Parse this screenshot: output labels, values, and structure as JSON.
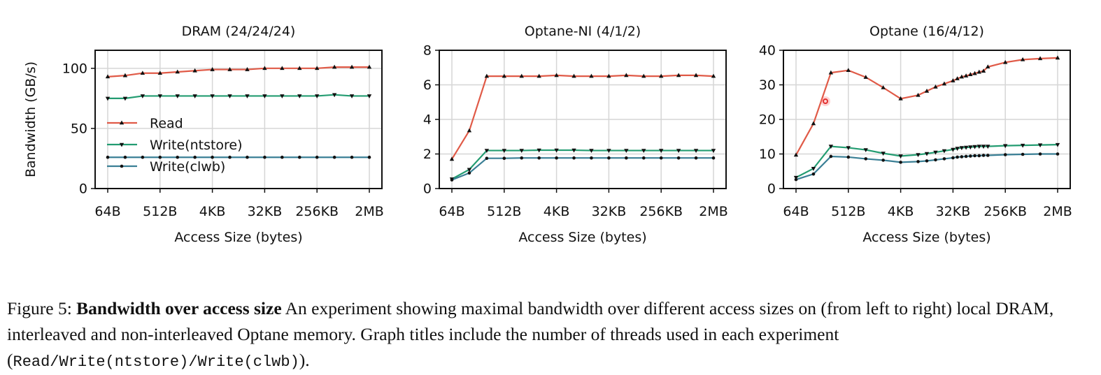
{
  "chart_data": [
    {
      "type": "line",
      "title": "DRAM (24/24/24)",
      "xlabel": "Access Size (bytes)",
      "ylabel": "Bandwidth (GB/s)",
      "ylim": [
        0,
        115
      ],
      "yticks": [
        0,
        50,
        100
      ],
      "xtick_labels": [
        "64B",
        "512B",
        "4KB",
        "32KB",
        "256KB",
        "2MB"
      ],
      "grid": true,
      "legend": "center-left",
      "series": [
        {
          "name": "Read",
          "color": "#e05a47",
          "marker": "triangle-up",
          "x": [
            0,
            1,
            2,
            3,
            4,
            5,
            6,
            7,
            8,
            9,
            10,
            11,
            12,
            13,
            14,
            15
          ],
          "y": [
            93,
            94,
            96,
            96,
            97,
            98,
            99,
            99,
            99,
            100,
            100,
            100,
            100,
            101,
            101,
            101
          ]
        },
        {
          "name": "Write(ntstore)",
          "color": "#239c71",
          "marker": "triangle-down",
          "x": [
            0,
            1,
            2,
            3,
            4,
            5,
            6,
            7,
            8,
            9,
            10,
            11,
            12,
            13,
            14,
            15
          ],
          "y": [
            75,
            75,
            77,
            77,
            77,
            77,
            77,
            77,
            77,
            77,
            77,
            77,
            77,
            78,
            77,
            77
          ]
        },
        {
          "name": "Write(clwb)",
          "color": "#3a7f95",
          "marker": "circle",
          "x": [
            0,
            1,
            2,
            3,
            4,
            5,
            6,
            7,
            8,
            9,
            10,
            11,
            12,
            13,
            14,
            15
          ],
          "y": [
            26,
            26,
            26,
            26,
            26,
            26,
            26,
            26,
            26,
            26,
            26,
            26,
            26,
            26,
            26,
            26
          ]
        }
      ]
    },
    {
      "type": "line",
      "title": "Optane-NI (4/1/2)",
      "xlabel": "Access Size (bytes)",
      "ylabel": "",
      "ylim": [
        0,
        8
      ],
      "yticks": [
        0,
        2,
        4,
        6,
        8
      ],
      "xtick_labels": [
        "64B",
        "512B",
        "4KB",
        "32KB",
        "256KB",
        "2MB"
      ],
      "grid": true,
      "series": [
        {
          "name": "Read",
          "color": "#e05a47",
          "marker": "triangle-up",
          "x": [
            0,
            1,
            2,
            3,
            4,
            5,
            6,
            7,
            8,
            9,
            10,
            11,
            12,
            13,
            14,
            15
          ],
          "y": [
            1.7,
            3.35,
            6.5,
            6.5,
            6.5,
            6.5,
            6.55,
            6.5,
            6.5,
            6.5,
            6.55,
            6.5,
            6.5,
            6.55,
            6.55,
            6.5
          ]
        },
        {
          "name": "Write(ntstore)",
          "color": "#239c71",
          "marker": "triangle-down",
          "x": [
            0,
            1,
            2,
            3,
            4,
            5,
            6,
            7,
            8,
            9,
            10,
            11,
            12,
            13,
            14,
            15
          ],
          "y": [
            0.55,
            1.1,
            2.2,
            2.2,
            2.2,
            2.22,
            2.22,
            2.22,
            2.2,
            2.2,
            2.2,
            2.2,
            2.2,
            2.2,
            2.2,
            2.2
          ]
        },
        {
          "name": "Write(clwb)",
          "color": "#3a7f95",
          "marker": "circle",
          "x": [
            0,
            1,
            2,
            3,
            4,
            5,
            6,
            7,
            8,
            9,
            10,
            11,
            12,
            13,
            14,
            15
          ],
          "y": [
            0.5,
            0.9,
            1.75,
            1.75,
            1.77,
            1.77,
            1.77,
            1.77,
            1.77,
            1.77,
            1.77,
            1.77,
            1.77,
            1.77,
            1.77,
            1.77
          ]
        }
      ]
    },
    {
      "type": "line",
      "title": "Optane (16/4/12)",
      "xlabel": "Access Size (bytes)",
      "ylabel": "",
      "ylim": [
        0,
        40
      ],
      "yticks": [
        0,
        10,
        20,
        30,
        40
      ],
      "xtick_labels": [
        "64B",
        "512B",
        "4KB",
        "32KB",
        "256KB",
        "2MB"
      ],
      "grid": true,
      "series": [
        {
          "name": "Read",
          "color": "#e05a47",
          "marker": "triangle-up",
          "x": [
            0,
            1,
            2,
            3,
            4,
            5,
            6,
            7,
            7.5,
            8,
            8.5,
            9,
            9.25,
            9.5,
            9.75,
            10,
            10.25,
            10.5,
            10.75,
            11,
            12,
            13,
            14,
            15
          ],
          "y": [
            9.7,
            18.8,
            33.5,
            34.2,
            32.2,
            29.2,
            26,
            27,
            28.2,
            29.4,
            30.3,
            31.2,
            31.8,
            32.3,
            32.6,
            33,
            33.3,
            33.7,
            34,
            35.2,
            36.5,
            37.3,
            37.6,
            37.8
          ]
        },
        {
          "name": "Write(ntstore)",
          "color": "#239c71",
          "marker": "triangle-down",
          "x": [
            0,
            1,
            2,
            3,
            4,
            5,
            6,
            7,
            7.5,
            8,
            8.5,
            9,
            9.25,
            9.5,
            9.75,
            10,
            10.25,
            10.5,
            10.75,
            11,
            12,
            13,
            14,
            15
          ],
          "y": [
            3.2,
            5.8,
            12.2,
            11.8,
            11.2,
            10.2,
            9.4,
            9.8,
            10.1,
            10.5,
            10.9,
            11.3,
            11.6,
            11.8,
            11.9,
            12,
            12.1,
            12.2,
            12.2,
            12.2,
            12.4,
            12.5,
            12.6,
            12.7
          ]
        },
        {
          "name": "Write(clwb)",
          "color": "#3a7f95",
          "marker": "circle",
          "x": [
            0,
            1,
            2,
            3,
            4,
            5,
            6,
            7,
            7.5,
            8,
            8.5,
            9,
            9.25,
            9.5,
            9.75,
            10,
            10.25,
            10.5,
            10.75,
            11,
            12,
            13,
            14,
            15
          ],
          "y": [
            2.6,
            4.2,
            9.3,
            9.1,
            8.6,
            8.2,
            7.6,
            7.8,
            8,
            8.3,
            8.6,
            8.9,
            9.1,
            9.2,
            9.3,
            9.4,
            9.5,
            9.5,
            9.6,
            9.6,
            9.8,
            9.9,
            10,
            10
          ]
        }
      ]
    }
  ],
  "caption": {
    "label": "Figure 5: ",
    "bold": "Bandwidth over access size",
    "text": " An experiment showing maximal bandwidth over different access sizes on (from left to right) local DRAM, interleaved and non-interleaved Optane memory. Graph titles include the number of threads used in each experiment (",
    "code": "Read/Write(ntstore)/Write(clwb)",
    "end": ")."
  }
}
